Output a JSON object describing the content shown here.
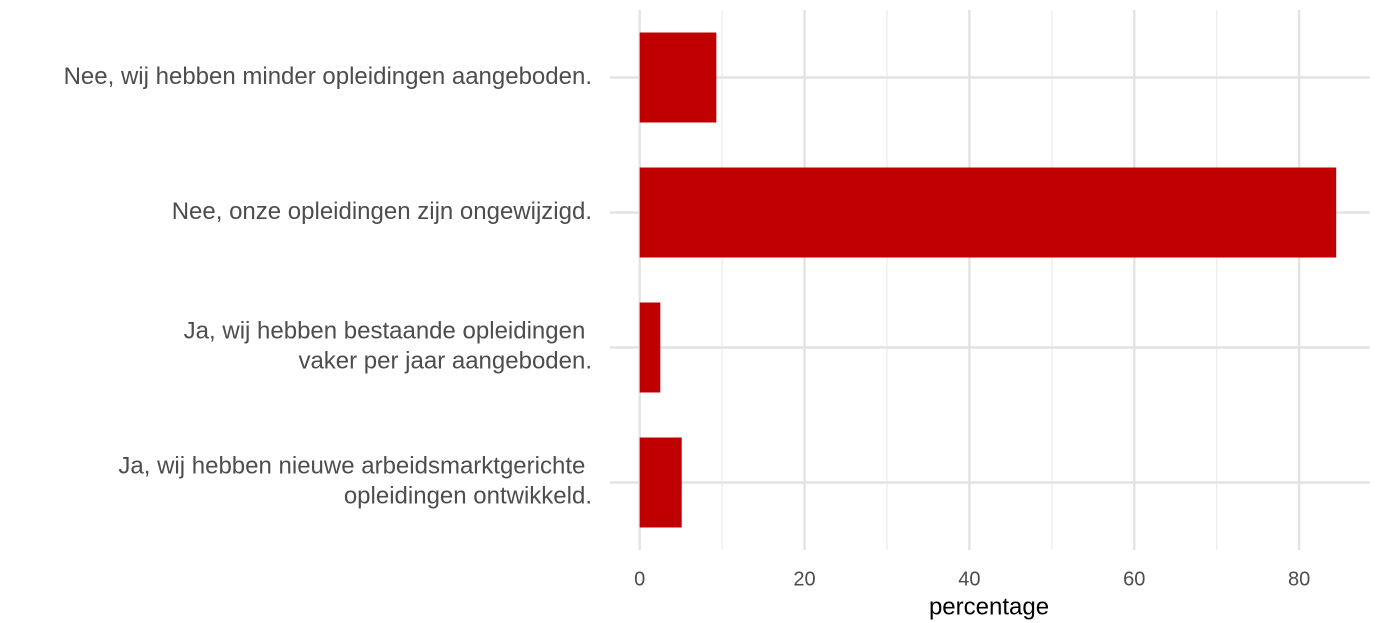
{
  "chart_data": {
    "type": "barh",
    "categories": [
      "Nee, wij hebben minder opleidingen aangeboden.",
      "Nee, onze opleidingen zijn ongewijzigd.",
      "Ja, wij hebben bestaande opleidingen \nvaker per jaar aangeboden.",
      "Ja, wij hebben nieuwe arbeidsmarktgerichte \nopleidingen ontwikkeld."
    ],
    "values": [
      9.3,
      84.5,
      2.5,
      5.1
    ],
    "color": "#c00000",
    "xlabel": "percentage",
    "xlim": [
      -3.6,
      88.6
    ],
    "xticks": [
      0,
      20,
      40,
      60,
      80
    ],
    "xminorticks": [
      10,
      30,
      50,
      70
    ],
    "grid": true
  }
}
